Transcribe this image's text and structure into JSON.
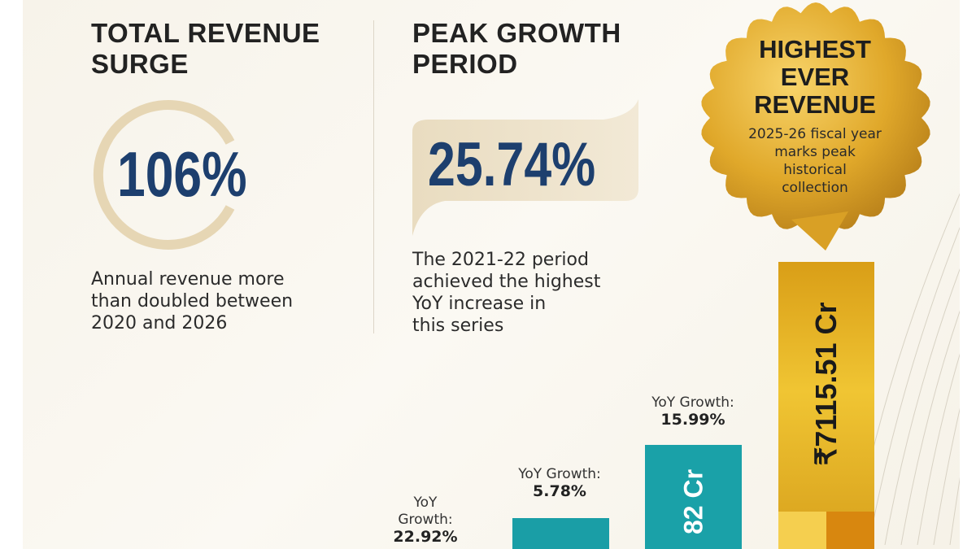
{
  "left": {
    "title_line1": "TOTAL REVENUE",
    "title_line2": "SURGE",
    "value": "106%",
    "desc": [
      "Annual revenue more",
      "than doubled between",
      "2020 and 2026"
    ]
  },
  "middle": {
    "title_line1": "PEAK GROWTH",
    "title_line2": "PERIOD",
    "value": "25.74%",
    "desc": [
      "The 2021-22 period",
      "achieved the highest",
      "YoY increase in",
      "this series"
    ]
  },
  "badge": {
    "line1": "HIGHEST",
    "line2": "EVER",
    "line3": "REVENUE",
    "sub": [
      "2025-26 fiscal year",
      "marks peak",
      "historical",
      "collection"
    ]
  },
  "colors": {
    "navy": "#1d3f6e",
    "teal": "#1a9ea6",
    "gold": "#d9a21a",
    "tan": "#e6d6b4"
  },
  "chart_data": {
    "type": "bar",
    "bars": [
      {
        "yoy_label": "YoY",
        "yoy_label2": "Growth:",
        "yoy_value": "22.92%",
        "value_label": ""
      },
      {
        "yoy_label": "YoY Growth:",
        "yoy_value": "5.78%",
        "value_label": ""
      },
      {
        "yoy_label": "YoY Growth:",
        "yoy_value": "15.99%",
        "value_label": "82 Cr"
      },
      {
        "yoy_label": "",
        "yoy_value": "",
        "value_label": "₹7115.51 Cr",
        "highlight": true
      }
    ]
  }
}
